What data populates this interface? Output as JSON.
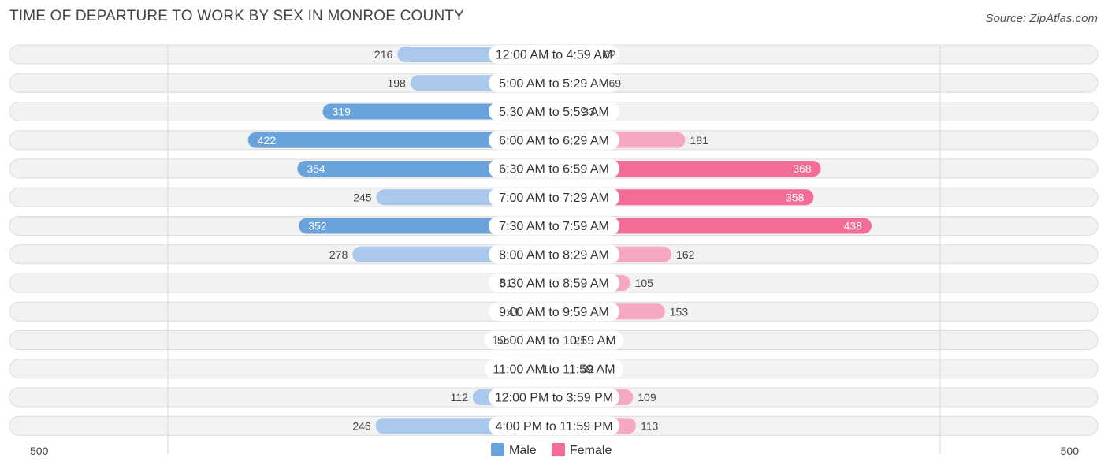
{
  "header": {
    "title": "TIME OF DEPARTURE TO WORK BY SEX IN MONROE COUNTY",
    "source": "Source: ZipAtlas.com"
  },
  "colors": {
    "male_strong": "#6aa3dc",
    "male_light": "#a9c8ec",
    "female_strong": "#f36d96",
    "female_light": "#f6a8c0",
    "row_bg": "#f2f2f2",
    "row_border": "#dcdcdc"
  },
  "chart_data": {
    "type": "bar",
    "orientation": "horizontal-diverging",
    "title": "TIME OF DEPARTURE TO WORK BY SEX IN MONROE COUNTY",
    "categories": [
      "12:00 AM to 4:59 AM",
      "5:00 AM to 5:29 AM",
      "5:30 AM to 5:59 AM",
      "6:00 AM to 6:29 AM",
      "6:30 AM to 6:59 AM",
      "7:00 AM to 7:29 AM",
      "7:30 AM to 7:59 AM",
      "8:00 AM to 8:29 AM",
      "8:30 AM to 8:59 AM",
      "9:00 AM to 9:59 AM",
      "10:00 AM to 10:59 AM",
      "11:00 AM to 11:59 AM",
      "12:00 PM to 3:59 PM",
      "4:00 PM to 11:59 PM"
    ],
    "series": [
      {
        "name": "Male",
        "values": [
          216,
          198,
          319,
          422,
          354,
          245,
          352,
          278,
          51,
          41,
          55,
          1,
          112,
          246
        ]
      },
      {
        "name": "Female",
        "values": [
          62,
          69,
          33,
          181,
          368,
          358,
          438,
          162,
          105,
          153,
          21,
          32,
          109,
          113
        ]
      }
    ],
    "axis": {
      "left_label": "500",
      "right_label": "500",
      "max": 500
    },
    "legend": {
      "position": "bottom-center",
      "male_label": "Male",
      "female_label": "Female"
    }
  }
}
